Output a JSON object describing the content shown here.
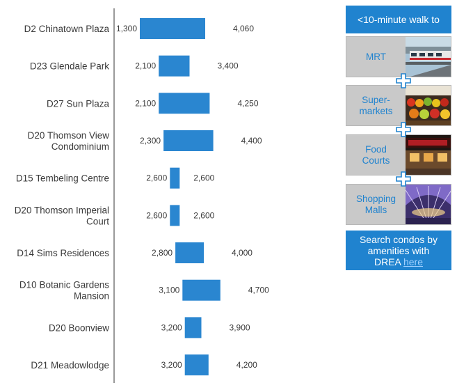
{
  "chart_data": {
    "type": "bar",
    "subtype": "floating-range",
    "categories": [
      [
        "D2 Chinatown Plaza"
      ],
      [
        "D23 Glendale Park"
      ],
      [
        "D27 Sun Plaza"
      ],
      [
        "D20 Thomson View",
        "Condominium"
      ],
      [
        "D15 Tembeling Centre"
      ],
      [
        "D20 Thomson Imperial",
        "Court"
      ],
      [
        "D14 Sims Residences"
      ],
      [
        "D10 Botanic Gardens",
        "Mansion"
      ],
      [
        "D20 Boonview"
      ],
      [
        "D21 Meadowlodge"
      ]
    ],
    "low": [
      1300,
      2100,
      2100,
      2300,
      2600,
      2600,
      2800,
      3100,
      3200,
      3200
    ],
    "high": [
      4060,
      3400,
      4250,
      4400,
      2600,
      2600,
      4000,
      4700,
      3900,
      4200
    ],
    "low_labels": [
      "1,300",
      "2,100",
      "2,100",
      "2,300",
      "2,600",
      "2,600",
      "2,800",
      "3,100",
      "3,200",
      "3,200"
    ],
    "high_labels": [
      "4,060",
      "3,400",
      "4,250",
      "4,400",
      "2,600",
      "2,600",
      "4,000",
      "4,700",
      "3,900",
      "4,200"
    ],
    "bar_color": "#2a86d0",
    "title": "",
    "xlabel": "",
    "ylabel": ""
  },
  "sidebar": {
    "header": "<10-minute walk to",
    "amenities": [
      {
        "label_lines": [
          "MRT"
        ],
        "image": "mrt-train-photo"
      },
      {
        "label_lines": [
          "Super-",
          "markets"
        ],
        "image": "supermarket-produce-photo"
      },
      {
        "label_lines": [
          "Food",
          "Courts"
        ],
        "image": "food-court-photo"
      },
      {
        "label_lines": [
          "Shopping",
          "Malls"
        ],
        "image": "shopping-mall-photo"
      }
    ],
    "plus_icon": "plus-icon",
    "cta_lines": [
      "Search condos by",
      "amenities with"
    ],
    "cta_prefix": "DREA ",
    "cta_link": "here",
    "accent": "#2083cf",
    "panel_gray": "#c9c9c9"
  }
}
